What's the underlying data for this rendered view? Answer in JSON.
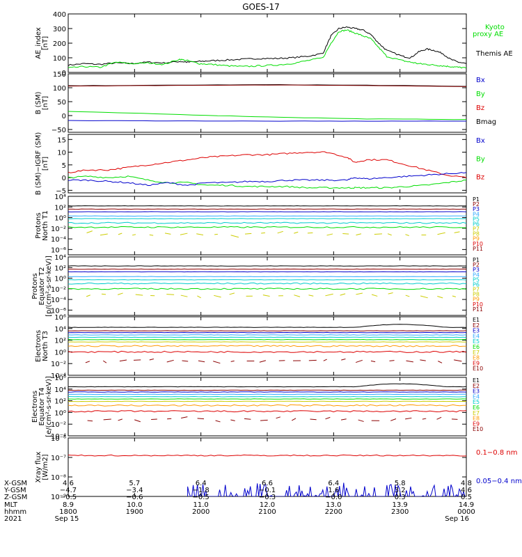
{
  "title": "GOES-17",
  "colors": {
    "black": "#000000",
    "green": "#00dd00",
    "blue": "#0000cc",
    "red": "#dd0000",
    "darkred": "#8b0000",
    "cyan": "#00cccc",
    "lightblue": "#33aaff",
    "yellow": "#cccc00",
    "orange": "#ff9900"
  },
  "chart_data": [
    {
      "type": "line",
      "id": "ae",
      "ylabel": [
        "AE_index",
        "[nT]"
      ],
      "ylim": [
        0,
        400
      ],
      "ticks": [
        "0",
        "100",
        "200",
        "300",
        "400"
      ],
      "legend": [
        {
          "text": "Kyoto",
          "color": "green"
        },
        {
          "text": "proxy AE",
          "color": "green"
        },
        {
          "text": "Themis AE",
          "color": "black"
        }
      ],
      "x": [
        0,
        0.04,
        0.08,
        0.12,
        0.16,
        0.2,
        0.24,
        0.28,
        0.3,
        0.33,
        0.36,
        0.4,
        0.44,
        0.48,
        0.52,
        0.56,
        0.6,
        0.64,
        0.66,
        0.68,
        0.7,
        0.72,
        0.74,
        0.76,
        0.78,
        0.8,
        0.84,
        0.86,
        0.88,
        0.9,
        0.92,
        0.94,
        0.96,
        0.98,
        1.0
      ],
      "series": [
        {
          "color": "black",
          "values": [
            50,
            60,
            55,
            65,
            60,
            70,
            65,
            75,
            70,
            75,
            80,
            85,
            90,
            95,
            95,
            100,
            110,
            130,
            250,
            300,
            310,
            300,
            290,
            260,
            200,
            150,
            110,
            100,
            140,
            160,
            150,
            130,
            90,
            70,
            60
          ]
        },
        {
          "color": "green",
          "values": [
            30,
            40,
            35,
            70,
            60,
            65,
            55,
            90,
            80,
            60,
            55,
            45,
            40,
            45,
            50,
            60,
            80,
            100,
            200,
            280,
            290,
            270,
            250,
            230,
            170,
            110,
            80,
            70,
            60,
            55,
            50,
            45,
            40,
            35,
            30
          ]
        }
      ]
    },
    {
      "type": "line",
      "id": "bsm",
      "ylabel": [
        "B (SM)",
        "[nT]"
      ],
      "ylim": [
        -60,
        150
      ],
      "ticks": [
        "−50",
        "0",
        "50",
        "100",
        "150"
      ],
      "tickvals": [
        -50,
        0,
        50,
        100,
        150
      ],
      "legend": [
        {
          "text": "Bx",
          "color": "blue"
        },
        {
          "text": "By",
          "color": "green"
        },
        {
          "text": "Bz",
          "color": "red"
        },
        {
          "text": "Bmag",
          "color": "black"
        }
      ],
      "x": [
        0,
        0.25,
        0.5,
        0.75,
        1.0
      ],
      "series": [
        {
          "color": "black",
          "values": [
            107,
            109,
            111,
            109,
            105
          ]
        },
        {
          "color": "darkred",
          "values": [
            106,
            108,
            110,
            108,
            104
          ]
        },
        {
          "color": "green",
          "values": [
            15,
            5,
            -5,
            -12,
            -14
          ]
        },
        {
          "color": "blue",
          "values": [
            -18,
            -19,
            -20,
            -20,
            -20
          ]
        }
      ]
    },
    {
      "type": "line",
      "id": "bigrf",
      "ylabel": [
        "B (SM)−IGRF (SM)",
        "[nT]"
      ],
      "ylim": [
        -6,
        17
      ],
      "ticks": [
        "−5",
        "0",
        "5",
        "10",
        "15"
      ],
      "tickvals": [
        -5,
        0,
        5,
        10,
        15
      ],
      "legend": [
        {
          "text": "Bx",
          "color": "blue"
        },
        {
          "text": "By",
          "color": "green"
        },
        {
          "text": "Bz",
          "color": "red"
        }
      ],
      "x": [
        0,
        0.05,
        0.1,
        0.15,
        0.2,
        0.25,
        0.3,
        0.35,
        0.4,
        0.45,
        0.5,
        0.55,
        0.6,
        0.65,
        0.7,
        0.72,
        0.75,
        0.8,
        0.85,
        0.9,
        0.95,
        1.0
      ],
      "series": [
        {
          "color": "red",
          "values": [
            2,
            3,
            3,
            4,
            5,
            6,
            7,
            8,
            8.5,
            9,
            9,
            9.5,
            10,
            10,
            8,
            6,
            7,
            7,
            5,
            3,
            1,
            0
          ]
        },
        {
          "color": "green",
          "values": [
            0,
            0.5,
            0,
            0.5,
            -1,
            -2,
            -2,
            -3,
            -3,
            -3.5,
            -3.5,
            -3.5,
            -4,
            -4,
            -4,
            -4,
            -4,
            -4,
            -3.5,
            -3,
            -2,
            -1
          ]
        },
        {
          "color": "blue",
          "values": [
            -1,
            -1,
            -1.5,
            -2,
            -3,
            -2,
            -3,
            -2,
            -2,
            -1.5,
            -1.5,
            -1,
            -1,
            -1,
            -1,
            0,
            -0.5,
            0,
            0.5,
            1,
            1.5,
            2
          ]
        }
      ]
    },
    {
      "type": "line",
      "id": "pn",
      "ylabel": [
        "Protons",
        "North T1"
      ],
      "ylim": [
        -7,
        4
      ],
      "ticks": [
        "10⁻⁶",
        "10⁻⁴",
        "10⁻²",
        "10⁰",
        "10²",
        "10⁴"
      ],
      "tickvals": [
        -6,
        -4,
        -2,
        0,
        2,
        4
      ],
      "legend": [
        {
          "text": "P1",
          "color": "black"
        },
        {
          "text": "P2",
          "color": "darkred"
        },
        {
          "text": "P3",
          "color": "blue"
        },
        {
          "text": "P4",
          "color": "lightblue"
        },
        {
          "text": "P5",
          "color": "cyan"
        },
        {
          "text": "P6",
          "color": "cyan"
        },
        {
          "text": "P7",
          "color": "yellow"
        },
        {
          "text": "P8",
          "color": "yellow"
        },
        {
          "text": "P9",
          "color": "orange"
        },
        {
          "text": "P10",
          "color": "red"
        },
        {
          "text": "P11",
          "color": "darkred"
        }
      ],
      "levels": [
        2.2,
        1.6,
        1.1,
        0.3,
        -0.2,
        -1.0,
        -1.8
      ],
      "level_colors": [
        "black",
        "darkred",
        "blue",
        "lightblue",
        "cyan",
        "cyan",
        "green"
      ],
      "sparse_level": -3.1,
      "sparse_color": "yellow"
    },
    {
      "type": "line",
      "id": "pe",
      "ylabel": [
        "Protons",
        "Equator T2",
        "[p/(cm²-s-sr-keV)]"
      ],
      "ylim": [
        -7,
        4
      ],
      "ticks": [
        "10⁻⁶",
        "10⁻⁴",
        "10⁻²",
        "10⁰",
        "10²",
        "10⁴"
      ],
      "tickvals": [
        -6,
        -4,
        -2,
        0,
        2,
        4
      ],
      "legend": [
        {
          "text": "P1",
          "color": "black"
        },
        {
          "text": "P2",
          "color": "darkred"
        },
        {
          "text": "P3",
          "color": "blue"
        },
        {
          "text": "P4",
          "color": "lightblue"
        },
        {
          "text": "P5",
          "color": "cyan"
        },
        {
          "text": "P6",
          "color": "cyan"
        },
        {
          "text": "P7",
          "color": "yellow"
        },
        {
          "text": "P8",
          "color": "yellow"
        },
        {
          "text": "P9",
          "color": "orange"
        },
        {
          "text": "P10",
          "color": "red"
        },
        {
          "text": "P11",
          "color": "darkred"
        }
      ],
      "levels": [
        2.3,
        1.7,
        1.2,
        0.3,
        -0.3,
        -1.0,
        -2.0
      ],
      "level_colors": [
        "black",
        "darkred",
        "blue",
        "lightblue",
        "cyan",
        "cyan",
        "green"
      ],
      "sparse_level": -3.2,
      "sparse_color": "yellow"
    },
    {
      "type": "line",
      "id": "en",
      "ylabel": [
        "Electrons",
        "North T3"
      ],
      "ylim": [
        -4,
        6
      ],
      "ticks": [
        "10⁻⁴",
        "10⁻²",
        "10⁰",
        "10²",
        "10⁴",
        "10⁶"
      ],
      "tickvals": [
        -4,
        -2,
        0,
        2,
        4,
        6
      ],
      "legend": [
        {
          "text": "E1",
          "color": "black"
        },
        {
          "text": "E2",
          "color": "darkred"
        },
        {
          "text": "E3",
          "color": "blue"
        },
        {
          "text": "E4",
          "color": "lightblue"
        },
        {
          "text": "E5",
          "color": "cyan"
        },
        {
          "text": "E6",
          "color": "green"
        },
        {
          "text": "E7",
          "color": "yellow"
        },
        {
          "text": "E8",
          "color": "orange"
        },
        {
          "text": "E9",
          "color": "red"
        },
        {
          "text": "E10",
          "color": "darkred"
        }
      ],
      "levels": [
        4.2,
        3.6,
        3.3,
        2.9,
        2.5,
        2.1,
        1.7,
        1.0,
        0.0
      ],
      "level_colors": [
        "black",
        "darkred",
        "blue",
        "lightblue",
        "cyan",
        "green",
        "yellow",
        "orange",
        "red"
      ],
      "sparse_level": -1.6,
      "sparse_color": "darkred"
    },
    {
      "type": "line",
      "id": "ee",
      "ylabel": [
        "Electrons",
        "Equator T4",
        "[e/(cm²-s-sr-keV)]"
      ],
      "ylim": [
        -4,
        6
      ],
      "ticks": [
        "10⁻⁴",
        "10⁻²",
        "10⁰",
        "10²",
        "10⁴",
        "10⁶"
      ],
      "tickvals": [
        -4,
        -2,
        0,
        2,
        4,
        6
      ],
      "legend": [
        {
          "text": "E1",
          "color": "black"
        },
        {
          "text": "E2",
          "color": "darkred"
        },
        {
          "text": "E3",
          "color": "blue"
        },
        {
          "text": "E4",
          "color": "lightblue"
        },
        {
          "text": "E5",
          "color": "cyan"
        },
        {
          "text": "E6",
          "color": "green"
        },
        {
          "text": "E7",
          "color": "yellow"
        },
        {
          "text": "E8",
          "color": "orange"
        },
        {
          "text": "E9",
          "color": "red"
        },
        {
          "text": "E10",
          "color": "darkred"
        }
      ],
      "levels": [
        4.4,
        3.8,
        3.5,
        3.1,
        2.7,
        2.3,
        1.9,
        1.2,
        0.2
      ],
      "level_colors": [
        "black",
        "darkred",
        "blue",
        "lightblue",
        "cyan",
        "green",
        "yellow",
        "orange",
        "red"
      ],
      "sparse_level": -1.2,
      "sparse_color": "darkred"
    },
    {
      "type": "line",
      "id": "xray",
      "ylabel": [
        "Xray flux",
        "[W/m2]"
      ],
      "ylim": [
        -9,
        -6
      ],
      "ticks": [
        "10⁻⁹",
        "10⁻⁸",
        "10⁻⁷",
        "10⁻⁶"
      ],
      "tickvals": [
        -9,
        -8,
        -7,
        -6
      ],
      "legend": [
        {
          "text": "0.1−0.8 nm",
          "color": "red"
        },
        {
          "text": "0.05−0.4 nm",
          "color": "blue"
        }
      ],
      "levels": [
        -6.9
      ],
      "level_colors": [
        "red"
      ],
      "spikes_color": "blue"
    }
  ],
  "xaxis": {
    "rows": [
      {
        "label": "X-GSM",
        "values": [
          "4.6",
          "5.7",
          "6.4",
          "6.6",
          "6.4",
          "5.8",
          "4.8"
        ]
      },
      {
        "label": "Y-GSM",
        "values": [
          "−4.7",
          "−3.4",
          "−1.8",
          "−0.1",
          "1.6",
          "3.2",
          "4.6"
        ]
      },
      {
        "label": "Z-GSM",
        "values": [
          "−0.5",
          "−0.6",
          "−0.5",
          "−0.3",
          "−0.0",
          "0.3",
          "0.5"
        ]
      },
      {
        "label": "MLT",
        "values": [
          "8.9",
          "10.0",
          "11.0",
          "12.0",
          "13.0",
          "13.9",
          "14.9"
        ]
      },
      {
        "label": "hhmm",
        "values": [
          "1800",
          "1900",
          "2000",
          "2100",
          "2200",
          "2300",
          "0000"
        ]
      },
      {
        "label": "2021",
        "values": [
          "Sep 15",
          "",
          "",
          "",
          "",
          "",
          "Sep 16"
        ]
      }
    ]
  }
}
